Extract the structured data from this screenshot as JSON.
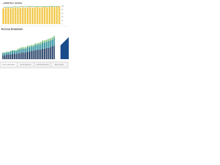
{
  "header": {
    "title": "... (MONTHLY BASIS)"
  },
  "chart_data": [
    {
      "type": "bar",
      "categories": [
        null,
        null,
        null,
        null,
        null,
        null,
        null,
        null,
        null,
        null,
        null,
        null,
        null,
        null,
        null,
        null,
        null,
        null,
        null,
        null,
        null,
        null,
        null,
        null
      ],
      "series": [
        {
          "color": "#f2c94c",
          "values": [
            88,
            90,
            92,
            89,
            91,
            93,
            90,
            92,
            94,
            91,
            93,
            95,
            92,
            94,
            96,
            93,
            95,
            97,
            94,
            96,
            98,
            95,
            97,
            99
          ]
        },
        {
          "color": "#3a9a5b",
          "type": "line",
          "values": [
            93,
            95,
            96,
            94,
            96,
            97,
            95,
            97,
            98,
            96,
            97,
            98,
            97,
            98,
            99,
            98,
            98,
            99,
            98,
            99,
            100,
            99,
            99,
            100
          ]
        }
      ],
      "ylim": [
        0,
        100
      ],
      "yticks": [
        0,
        20,
        40,
        60,
        80,
        100
      ],
      "grid": true
    },
    {
      "type": "stacked-bar",
      "title": "Revenue Breakdown",
      "categories": [
        null,
        null,
        null,
        null,
        null,
        null,
        null,
        null,
        null,
        null,
        null,
        null,
        null,
        null,
        null,
        null,
        null,
        null,
        null,
        null,
        null,
        null,
        null,
        null,
        null,
        null,
        null,
        null
      ],
      "series": [
        {
          "color": "#1f3b63",
          "values": [
            5,
            5,
            6,
            6,
            6,
            7,
            7,
            7,
            8,
            8,
            9,
            9,
            9,
            10,
            10,
            11,
            11,
            12,
            12,
            13,
            13,
            14,
            14,
            15,
            15,
            16,
            17,
            18
          ]
        },
        {
          "color": "#2f8f9d",
          "values": [
            3,
            3,
            3,
            3,
            4,
            4,
            4,
            4,
            4,
            5,
            5,
            5,
            5,
            6,
            6,
            6,
            6,
            7,
            7,
            7,
            7,
            8,
            8,
            8,
            9,
            9,
            9,
            10
          ]
        },
        {
          "color": "#7fc47f",
          "values": [
            1,
            1,
            1,
            1,
            1,
            1,
            1,
            1,
            2,
            2,
            2,
            2,
            2,
            2,
            2,
            2,
            2,
            2,
            2,
            2,
            3,
            3,
            3,
            3,
            3,
            3,
            3,
            3
          ]
        }
      ],
      "ylim": [
        0,
        35
      ]
    }
  ],
  "tabs": [
    "Revenue Breakdown",
    "Income Statement",
    "Cash Flow Statement",
    "Balance Sheet"
  ]
}
